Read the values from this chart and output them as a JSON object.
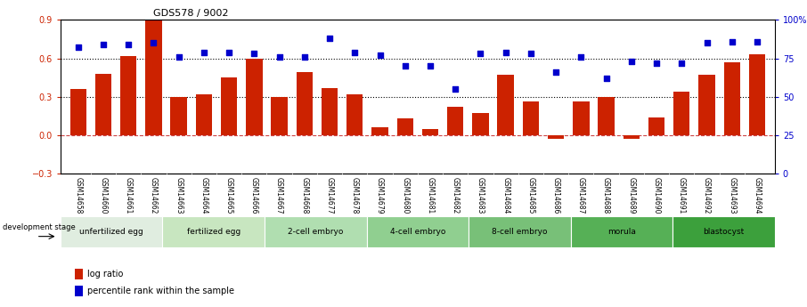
{
  "title": "GDS578 / 9002",
  "samples": [
    "GSM14658",
    "GSM14660",
    "GSM14661",
    "GSM14662",
    "GSM14663",
    "GSM14664",
    "GSM14665",
    "GSM14666",
    "GSM14667",
    "GSM14668",
    "GSM14677",
    "GSM14678",
    "GSM14679",
    "GSM14680",
    "GSM14681",
    "GSM14682",
    "GSM14683",
    "GSM14684",
    "GSM14685",
    "GSM14686",
    "GSM14687",
    "GSM14688",
    "GSM14689",
    "GSM14690",
    "GSM14691",
    "GSM14692",
    "GSM14693",
    "GSM14694"
  ],
  "log_ratio": [
    0.36,
    0.48,
    0.62,
    0.9,
    0.3,
    0.32,
    0.45,
    0.6,
    0.3,
    0.49,
    0.37,
    0.32,
    0.06,
    0.13,
    0.05,
    0.22,
    0.17,
    0.47,
    0.26,
    -0.03,
    0.26,
    0.3,
    -0.03,
    0.14,
    0.34,
    0.47,
    0.57,
    0.63
  ],
  "percentile": [
    82,
    84,
    84,
    85,
    76,
    79,
    79,
    78,
    76,
    76,
    88,
    79,
    77,
    70,
    70,
    55,
    78,
    79,
    78,
    66,
    76,
    62,
    73,
    72,
    72,
    85,
    86,
    86
  ],
  "stages": [
    {
      "name": "unfertilized egg",
      "count": 4,
      "color": "#e0ede0"
    },
    {
      "name": "fertilized egg",
      "count": 4,
      "color": "#c8e6c0"
    },
    {
      "name": "2-cell embryo",
      "count": 4,
      "color": "#b0deb0"
    },
    {
      "name": "4-cell embryo",
      "count": 4,
      "color": "#90cf90"
    },
    {
      "name": "8-cell embryo",
      "count": 4,
      "color": "#78c078"
    },
    {
      "name": "morula",
      "count": 4,
      "color": "#56b056"
    },
    {
      "name": "blastocyst",
      "count": 4,
      "color": "#3ca03c"
    }
  ],
  "bar_color": "#cc2200",
  "dot_color": "#0000cc",
  "ylim_left": [
    -0.3,
    0.9
  ],
  "ylim_right": [
    0,
    100
  ],
  "yticks_left": [
    -0.3,
    0.0,
    0.3,
    0.6,
    0.9
  ],
  "yticks_right": [
    0,
    25,
    50,
    75,
    100
  ],
  "dotted_lines": [
    0.3,
    0.6
  ],
  "hline_color": "#cc4444",
  "bg_sample_color": "#d0d0d0",
  "legend_red_label": "log ratio",
  "legend_blue_label": "percentile rank within the sample",
  "dev_stage_label": "development stage"
}
